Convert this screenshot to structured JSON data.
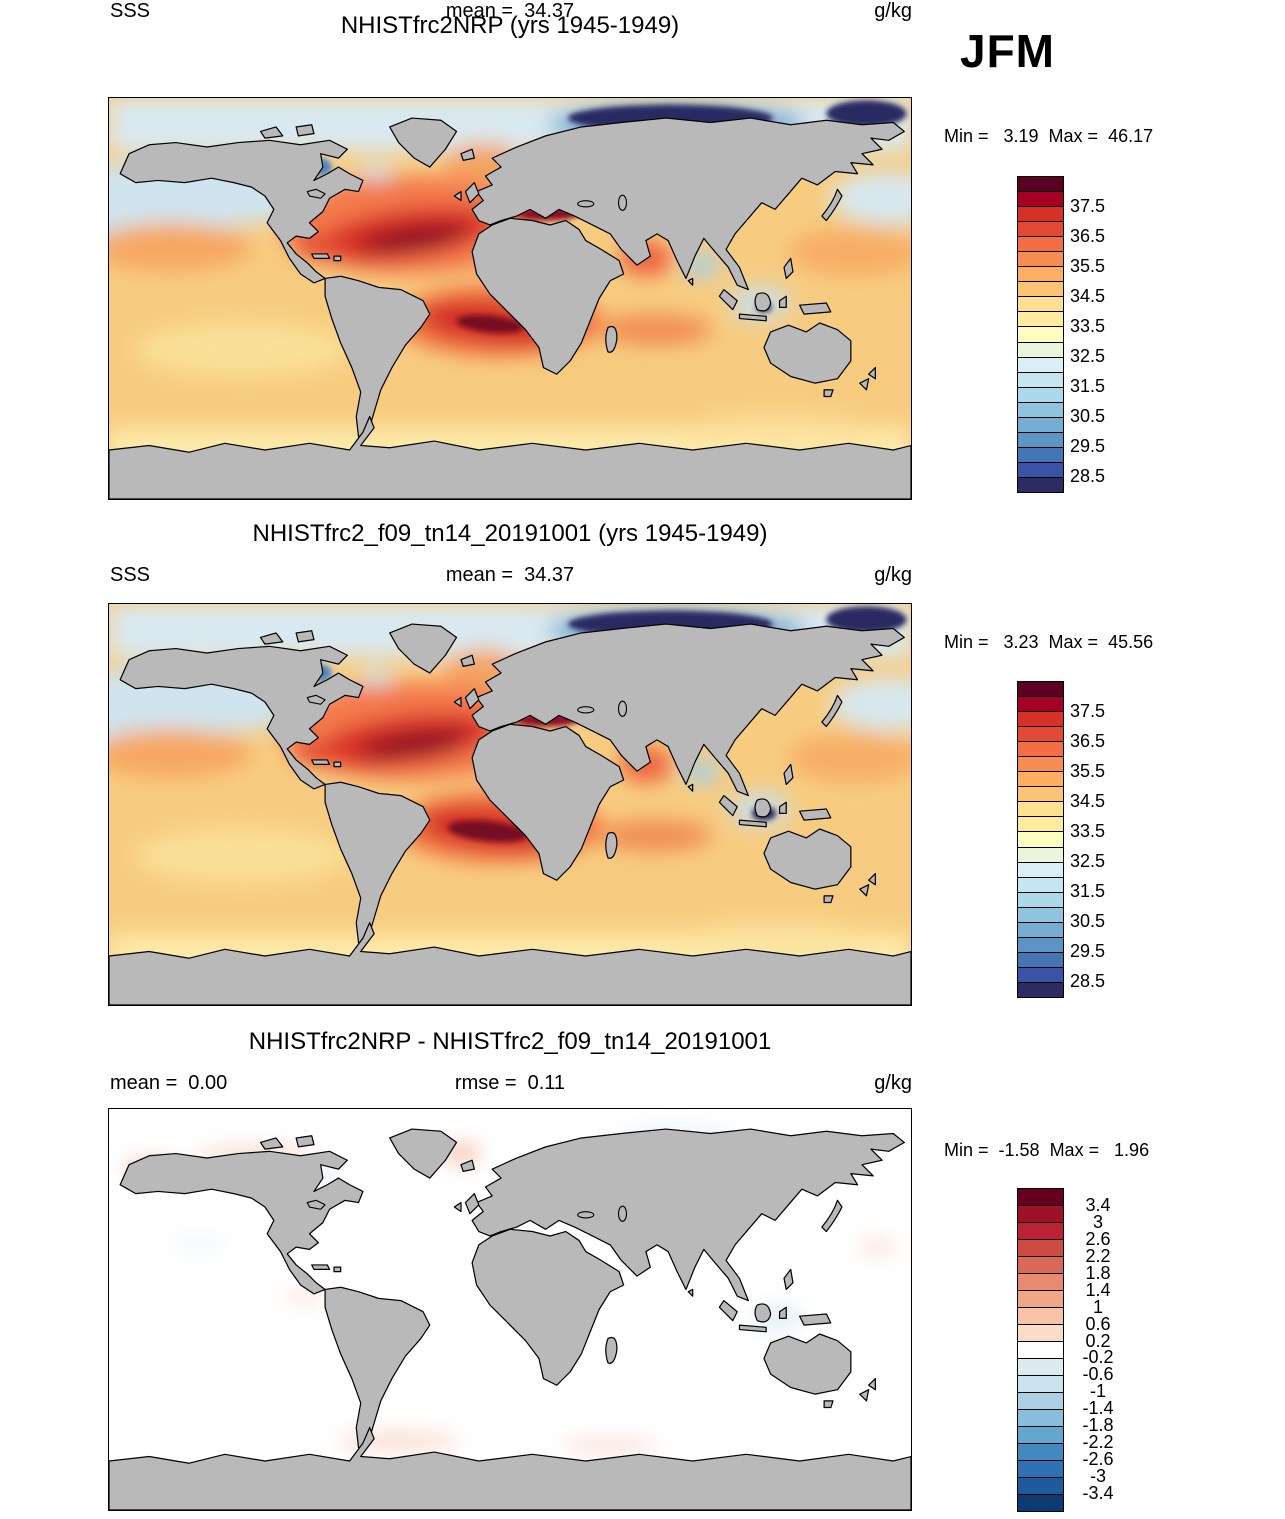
{
  "season_label": "JFM",
  "panels": [
    {
      "title": "NHISTfrc2NRP (yrs 1945-1949)",
      "left_label": "SSS",
      "left_value": "",
      "center_label": "mean =",
      "center_value": "34.37",
      "units": "g/kg",
      "min_label": "Min =",
      "min_value": "3.19",
      "max_label": "Max =",
      "max_value": "46.17",
      "colorbar": {
        "colors": [
          "#5c0023",
          "#a50026",
          "#d73027",
          "#e34a33",
          "#f46d43",
          "#f88d51",
          "#fdae61",
          "#fdc374",
          "#fee090",
          "#feeb9e",
          "#fdfdc0",
          "#eaf6dc",
          "#d9eff5",
          "#c5e5f0",
          "#abd9e9",
          "#90c3dd",
          "#74add1",
          "#5b94c5",
          "#4575b4",
          "#3a53a4",
          "#2e2a62"
        ],
        "labels": [
          {
            "text": "37.5",
            "boundary": 2
          },
          {
            "text": "36.5",
            "boundary": 4
          },
          {
            "text": "35.5",
            "boundary": 6
          },
          {
            "text": "34.5",
            "boundary": 8
          },
          {
            "text": "33.5",
            "boundary": 10
          },
          {
            "text": "32.5",
            "boundary": 12
          },
          {
            "text": "31.5",
            "boundary": 14
          },
          {
            "text": "30.5",
            "boundary": 16
          },
          {
            "text": "29.5",
            "boundary": 18
          },
          {
            "text": "28.5",
            "boundary": 20
          }
        ],
        "align": "left"
      }
    },
    {
      "title": "NHISTfrc2_f09_tn14_20191001 (yrs 1945-1949)",
      "left_label": "SSS",
      "left_value": "",
      "center_label": "mean =",
      "center_value": "34.37",
      "units": "g/kg",
      "min_label": "Min =",
      "min_value": "3.23",
      "max_label": "Max =",
      "max_value": "45.56",
      "colorbar": {
        "colors": [
          "#5c0023",
          "#a50026",
          "#d73027",
          "#e34a33",
          "#f46d43",
          "#f88d51",
          "#fdae61",
          "#fdc374",
          "#fee090",
          "#feeb9e",
          "#fdfdc0",
          "#eaf6dc",
          "#d9eff5",
          "#c5e5f0",
          "#abd9e9",
          "#90c3dd",
          "#74add1",
          "#5b94c5",
          "#4575b4",
          "#3a53a4",
          "#2e2a62"
        ],
        "labels": [
          {
            "text": "37.5",
            "boundary": 2
          },
          {
            "text": "36.5",
            "boundary": 4
          },
          {
            "text": "35.5",
            "boundary": 6
          },
          {
            "text": "34.5",
            "boundary": 8
          },
          {
            "text": "33.5",
            "boundary": 10
          },
          {
            "text": "32.5",
            "boundary": 12
          },
          {
            "text": "31.5",
            "boundary": 14
          },
          {
            "text": "30.5",
            "boundary": 16
          },
          {
            "text": "29.5",
            "boundary": 18
          },
          {
            "text": "28.5",
            "boundary": 20
          }
        ],
        "align": "left"
      }
    },
    {
      "title": "NHISTfrc2NRP - NHISTfrc2_f09_tn14_20191001",
      "left_label": "mean =",
      "left_value": "0.00",
      "center_label": "rmse =",
      "center_value": "0.11",
      "units": "g/kg",
      "min_label": "Min =",
      "min_value": "-1.58",
      "max_label": "Max =",
      "max_value": "1.96",
      "colorbar": {
        "colors": [
          "#67001f",
          "#9e1127",
          "#bb2233",
          "#cc4c43",
          "#d96957",
          "#e78a71",
          "#f1a688",
          "#f7c3a7",
          "#fbdcc9",
          "#ffffff",
          "#dcebf2",
          "#cbe1ee",
          "#abd0e4",
          "#88bedc",
          "#64a7ce",
          "#4389c0",
          "#2e72b2",
          "#1e5a9c",
          "#0d3b71"
        ],
        "labels": [
          {
            "text": "3.4",
            "boundary": 1
          },
          {
            "text": "3",
            "boundary": 2
          },
          {
            "text": "2.6",
            "boundary": 3
          },
          {
            "text": "2.2",
            "boundary": 4
          },
          {
            "text": "1.8",
            "boundary": 5
          },
          {
            "text": "1.4",
            "boundary": 6
          },
          {
            "text": "1",
            "boundary": 7
          },
          {
            "text": "0.6",
            "boundary": 8
          },
          {
            "text": "0.2",
            "boundary": 9
          },
          {
            "text": "-0.2",
            "boundary": 10
          },
          {
            "text": "-0.6",
            "boundary": 11
          },
          {
            "text": "-1",
            "boundary": 12
          },
          {
            "text": "-1.4",
            "boundary": 13
          },
          {
            "text": "-1.8",
            "boundary": 14
          },
          {
            "text": "-2.2",
            "boundary": 15
          },
          {
            "text": "-2.6",
            "boundary": 16
          },
          {
            "text": "-3",
            "boundary": 17
          },
          {
            "text": "-3.4",
            "boundary": 18
          }
        ],
        "align": "center"
      }
    }
  ],
  "chart_data": [
    {
      "type": "heatmap",
      "subtype": "filled-contour-world-map",
      "title": "NHISTfrc2NRP (yrs 1945-1949)",
      "variable": "SSS",
      "season": "JFM",
      "units": "g/kg",
      "stats": {
        "mean": 34.37,
        "min": 3.19,
        "max": 46.17
      },
      "colorbar": {
        "cell_step": 0.5,
        "range_low": 28.0,
        "range_high": 38.0,
        "labeled_ticks": [
          37.5,
          36.5,
          35.5,
          34.5,
          33.5,
          32.5,
          31.5,
          30.5,
          29.5,
          28.5
        ],
        "orientation": "vertical",
        "position": "right"
      },
      "land_color": "#b9b9b9",
      "notes": "Global sea-surface salinity climatology map; warm red maxima in subtropical North and South Atlantic and Mediterranean, dark blue minima in Arctic marginal seas"
    },
    {
      "type": "heatmap",
      "subtype": "filled-contour-world-map",
      "title": "NHISTfrc2_f09_tn14_20191001 (yrs 1945-1949)",
      "variable": "SSS",
      "season": "JFM",
      "units": "g/kg",
      "stats": {
        "mean": 34.37,
        "min": 3.23,
        "max": 45.56
      },
      "colorbar": {
        "cell_step": 0.5,
        "range_low": 28.0,
        "range_high": 38.0,
        "labeled_ticks": [
          37.5,
          36.5,
          35.5,
          34.5,
          33.5,
          32.5,
          31.5,
          30.5,
          29.5,
          28.5
        ],
        "orientation": "vertical",
        "position": "right"
      },
      "land_color": "#b9b9b9",
      "notes": "Same field from second simulation; nearly identical pattern"
    },
    {
      "type": "heatmap",
      "subtype": "difference-world-map",
      "title": "NHISTfrc2NRP - NHISTfrc2_f09_tn14_20191001",
      "variable": "SSS difference",
      "season": "JFM",
      "units": "g/kg",
      "stats": {
        "mean": 0.0,
        "rmse": 0.11,
        "min": -1.58,
        "max": 1.96
      },
      "colorbar": {
        "cell_step": 0.4,
        "range_low": -3.4,
        "range_high": 3.4,
        "labeled_ticks": [
          3.4,
          3,
          2.6,
          2.2,
          1.8,
          1.4,
          1,
          0.6,
          0.2,
          -0.2,
          -0.6,
          -1,
          -1.4,
          -1.8,
          -2.2,
          -2.6,
          -3,
          -3.4
        ],
        "orientation": "vertical",
        "position": "right"
      },
      "land_color": "#b9b9b9",
      "notes": "Mostly near-zero (white) differences with faint warm patches along Arctic coasts and around Greenland"
    }
  ]
}
